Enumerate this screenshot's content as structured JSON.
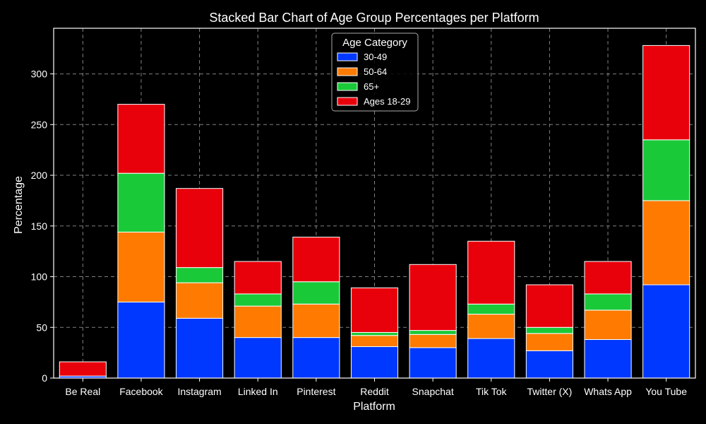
{
  "chart_data": {
    "type": "bar",
    "stacked": true,
    "title": "Stacked Bar Chart of Age Group Percentages per Platform",
    "xlabel": "Platform",
    "ylabel": "Percentage",
    "categories": [
      "Be Real",
      "Facebook",
      "Instagram",
      "Linked In",
      "Pinterest",
      "Reddit",
      "Snapchat",
      "Tik Tok",
      "Twitter (X)",
      "Whats App",
      "You Tube"
    ],
    "series": [
      {
        "name": "30-49",
        "color": "#0038ff",
        "values": [
          2,
          75,
          59,
          40,
          40,
          31,
          30,
          39,
          27,
          38,
          92
        ]
      },
      {
        "name": "50-64",
        "color": "#ff7a00",
        "values": [
          0,
          69,
          35,
          31,
          33,
          11,
          13,
          24,
          17,
          29,
          83
        ]
      },
      {
        "name": "65+",
        "color": "#1ac938",
        "values": [
          0,
          58,
          15,
          12,
          22,
          3,
          4,
          10,
          6,
          16,
          60
        ]
      },
      {
        "name": "Ages 18-29",
        "color": "#e8000b",
        "values": [
          14,
          68,
          78,
          32,
          44,
          44,
          65,
          62,
          42,
          32,
          93
        ]
      }
    ],
    "ylim": [
      0,
      345
    ],
    "yticks": [
      0,
      50,
      100,
      150,
      200,
      250,
      300
    ],
    "grid": true,
    "legend": {
      "title": "Age Category",
      "position": "top-center"
    },
    "style": {
      "background": "#000000",
      "foreground": "#ffffff",
      "grid_color": "#808080"
    }
  }
}
